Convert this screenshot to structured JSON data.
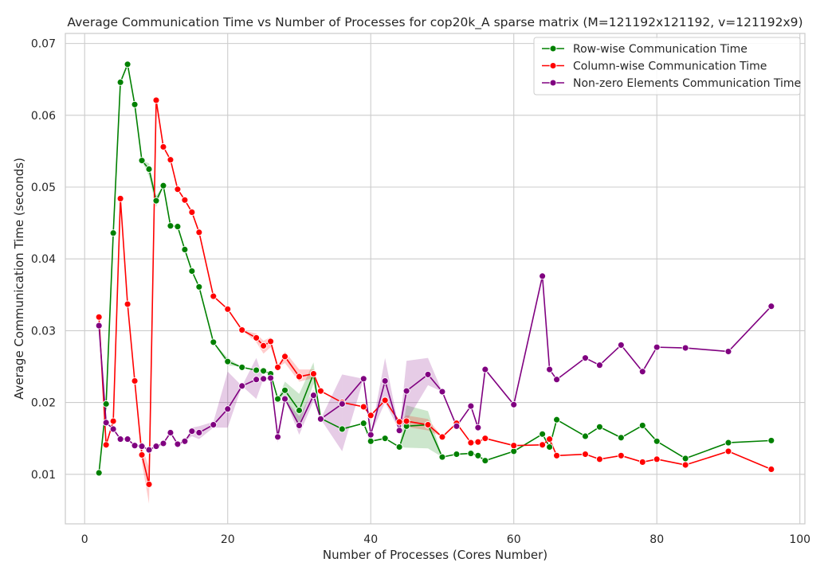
{
  "chart_data": {
    "type": "line",
    "title": "Average Communication Time vs Number of Processes for cop20k_A sparse matrix (M=121192x121192, v=121192x9)",
    "xlabel": "Number of Processes (Cores Number)",
    "ylabel": "Average Communication Time (seconds)",
    "xlim": [
      -2.7,
      100.7
    ],
    "ylim": [
      0.0031,
      0.0714
    ],
    "xticks": [
      0,
      20,
      40,
      60,
      80,
      100
    ],
    "yticks": [
      0.01,
      0.02,
      0.03,
      0.04,
      0.05,
      0.06,
      0.07
    ],
    "xtick_labels": [
      "0",
      "20",
      "40",
      "60",
      "80",
      "100"
    ],
    "ytick_labels": [
      "0.01",
      "0.02",
      "0.03",
      "0.04",
      "0.05",
      "0.06",
      "0.07"
    ],
    "grid": true,
    "legend_position": "top-right",
    "series": [
      {
        "name": "Row-wise Communication Time",
        "color": "#008000",
        "x": [
          2,
          3,
          4,
          5,
          6,
          7,
          8,
          9,
          10,
          11,
          12,
          13,
          14,
          15,
          16,
          18,
          20,
          22,
          24,
          25,
          26,
          27,
          28,
          30,
          32,
          33,
          36,
          39,
          40,
          42,
          44,
          45,
          48,
          50,
          52,
          54,
          55,
          56,
          60,
          64,
          65,
          66,
          70,
          72,
          75,
          78,
          80,
          84,
          90,
          96
        ],
        "values": [
          0.0102,
          0.0198,
          0.0436,
          0.0646,
          0.0671,
          0.0615,
          0.0537,
          0.0525,
          0.0481,
          0.0502,
          0.0446,
          0.0445,
          0.0413,
          0.0383,
          0.0361,
          0.0284,
          0.0257,
          0.0249,
          0.0245,
          0.0244,
          0.024,
          0.0205,
          0.0217,
          0.0189,
          0.024,
          0.0178,
          0.0163,
          0.0171,
          0.0146,
          0.015,
          0.0138,
          0.0167,
          0.0169,
          0.0124,
          0.0128,
          0.0129,
          0.0126,
          0.0119,
          0.0132,
          0.0156,
          0.0138,
          0.0176,
          0.0153,
          0.0166,
          0.0151,
          0.0168,
          0.0146,
          0.0122,
          0.0144,
          0.0147
        ],
        "band": [
          {
            "x": 9,
            "low": 0.0515,
            "high": 0.0533
          },
          {
            "x": 10,
            "low": 0.0472,
            "high": 0.0488
          },
          {
            "x": 20,
            "low": 0.0252,
            "high": 0.0262
          },
          {
            "x": 28,
            "low": 0.0205,
            "high": 0.0229
          },
          {
            "x": 30,
            "low": 0.0168,
            "high": 0.0212
          },
          {
            "x": 32,
            "low": 0.0226,
            "high": 0.0256
          },
          {
            "x": 45,
            "low": 0.0137,
            "high": 0.0196
          },
          {
            "x": 48,
            "low": 0.0136,
            "high": 0.0188
          }
        ]
      },
      {
        "name": "Column-wise Communication Time",
        "color": "#ff0000",
        "x": [
          2,
          3,
          4,
          5,
          6,
          7,
          8,
          9,
          10,
          11,
          12,
          13,
          14,
          15,
          16,
          18,
          20,
          22,
          24,
          25,
          26,
          27,
          28,
          30,
          32,
          33,
          36,
          39,
          40,
          42,
          44,
          45,
          48,
          50,
          52,
          54,
          55,
          56,
          60,
          64,
          65,
          66,
          70,
          72,
          75,
          78,
          80,
          84,
          90,
          96
        ],
        "values": [
          0.0319,
          0.0141,
          0.0174,
          0.0484,
          0.0337,
          0.023,
          0.0127,
          0.0086,
          0.0621,
          0.0556,
          0.0538,
          0.0497,
          0.0482,
          0.0465,
          0.0437,
          0.0348,
          0.033,
          0.0301,
          0.029,
          0.0279,
          0.0285,
          0.0249,
          0.0264,
          0.0236,
          0.024,
          0.0216,
          0.02,
          0.0194,
          0.0182,
          0.0203,
          0.0173,
          0.0174,
          0.0169,
          0.0152,
          0.0171,
          0.0144,
          0.0145,
          0.015,
          0.014,
          0.0141,
          0.0149,
          0.0126,
          0.0128,
          0.0121,
          0.0126,
          0.0117,
          0.0121,
          0.0113,
          0.0132,
          0.0107
        ],
        "band": [
          {
            "x": 8,
            "low": 0.0116,
            "high": 0.0138
          },
          {
            "x": 9,
            "low": 0.0059,
            "high": 0.011
          },
          {
            "x": 10,
            "low": 0.0612,
            "high": 0.0628
          },
          {
            "x": 24,
            "low": 0.0284,
            "high": 0.0296
          },
          {
            "x": 25,
            "low": 0.0268,
            "high": 0.0286
          },
          {
            "x": 26,
            "low": 0.0277,
            "high": 0.0291
          },
          {
            "x": 28,
            "low": 0.0255,
            "high": 0.0271
          },
          {
            "x": 30,
            "low": 0.0229,
            "high": 0.0246
          },
          {
            "x": 32,
            "low": 0.0234,
            "high": 0.0246
          },
          {
            "x": 45,
            "low": 0.0166,
            "high": 0.0182
          },
          {
            "x": 48,
            "low": 0.0161,
            "high": 0.0177
          }
        ]
      },
      {
        "name": "Non-zero Elements Communication Time",
        "color": "#800080",
        "x": [
          2,
          3,
          4,
          5,
          6,
          7,
          8,
          9,
          10,
          11,
          12,
          13,
          14,
          15,
          16,
          18,
          20,
          22,
          24,
          25,
          26,
          27,
          28,
          30,
          32,
          33,
          36,
          39,
          40,
          42,
          44,
          45,
          48,
          50,
          52,
          54,
          55,
          56,
          60,
          64,
          65,
          66,
          70,
          72,
          75,
          78,
          80,
          84,
          90,
          96
        ],
        "values": [
          0.0307,
          0.0172,
          0.0163,
          0.0149,
          0.0149,
          0.014,
          0.0139,
          0.0134,
          0.0139,
          0.0143,
          0.0158,
          0.0142,
          0.0146,
          0.016,
          0.0158,
          0.0169,
          0.0191,
          0.0223,
          0.0232,
          0.0233,
          0.0234,
          0.0152,
          0.0205,
          0.0168,
          0.021,
          0.0177,
          0.0198,
          0.0233,
          0.0155,
          0.023,
          0.0161,
          0.0216,
          0.0239,
          0.0215,
          0.0167,
          0.0195,
          0.0165,
          0.0246,
          0.0197,
          0.0376,
          0.0246,
          0.0232,
          0.0262,
          0.0252,
          0.028,
          0.0243,
          0.0277,
          0.0276,
          0.0271,
          0.0334
        ],
        "band": [
          {
            "x": 15,
            "low": 0.0153,
            "high": 0.0165
          },
          {
            "x": 16,
            "low": 0.0149,
            "high": 0.0167
          },
          {
            "x": 18,
            "low": 0.0165,
            "high": 0.0173
          },
          {
            "x": 20,
            "low": 0.0165,
            "high": 0.0243
          },
          {
            "x": 24,
            "low": 0.0205,
            "high": 0.0262
          },
          {
            "x": 27,
            "low": 0.0144,
            "high": 0.016
          },
          {
            "x": 30,
            "low": 0.0155,
            "high": 0.0181
          },
          {
            "x": 32,
            "low": 0.0202,
            "high": 0.0218
          },
          {
            "x": 36,
            "low": 0.0132,
            "high": 0.0239
          },
          {
            "x": 42,
            "low": 0.02,
            "high": 0.0262
          },
          {
            "x": 45,
            "low": 0.0174,
            "high": 0.0258
          },
          {
            "x": 48,
            "low": 0.0224,
            "high": 0.0262
          }
        ]
      }
    ]
  }
}
